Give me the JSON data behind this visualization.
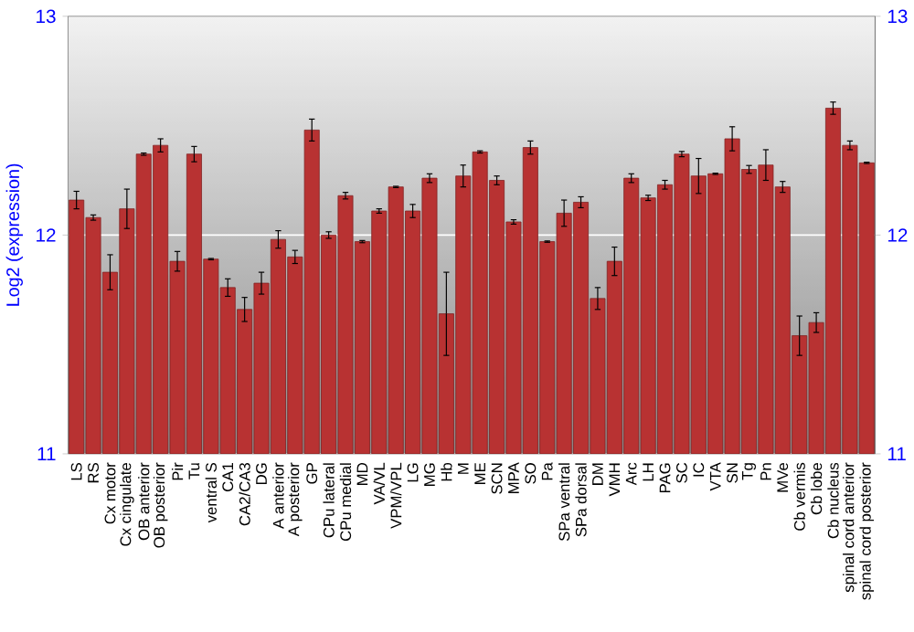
{
  "chart_data": {
    "type": "bar",
    "ylabel": "Log2 (expression)",
    "categories": [
      "LS",
      "RS",
      "Cx motor",
      "Cx cingulate",
      "OB anterior",
      "OB posterior",
      "Pir",
      "Tu",
      "ventral S",
      "CA1",
      "CA2/CA3",
      "DG",
      "A anterior",
      "A posterior",
      "GP",
      "CPu lateral",
      "CPu medial",
      "MD",
      "VA/VL",
      "VPM/VPL",
      "LG",
      "MG",
      "Hb",
      "M",
      "ME",
      "SCN",
      "MPA",
      "SO",
      "Pa",
      "SPa ventral",
      "SPa dorsal",
      "DM",
      "VMH",
      "Arc",
      "LH",
      "PAG",
      "SC",
      "IC",
      "VTA",
      "SN",
      "Tg",
      "Pn",
      "MVe",
      "Cb vermis",
      "Cb lobe",
      "Cb nucleus",
      "spinal cord anterior",
      "spinal cord posterior"
    ],
    "values": [
      12.16,
      12.08,
      11.83,
      12.12,
      12.37,
      12.41,
      11.88,
      12.37,
      11.89,
      11.76,
      11.66,
      11.78,
      11.98,
      11.9,
      12.48,
      12.0,
      12.18,
      11.97,
      12.11,
      12.22,
      12.11,
      12.26,
      11.64,
      12.27,
      12.38,
      12.25,
      12.06,
      12.4,
      11.97,
      12.1,
      12.15,
      11.71,
      11.88,
      12.26,
      12.17,
      12.23,
      12.37,
      12.27,
      12.28,
      12.44,
      12.3,
      12.32,
      12.22,
      11.54,
      11.6,
      12.58,
      12.41,
      12.33
    ],
    "errors": [
      0.04,
      0.012,
      0.08,
      0.09,
      0.005,
      0.03,
      0.045,
      0.035,
      0.003,
      0.04,
      0.055,
      0.05,
      0.04,
      0.03,
      0.05,
      0.015,
      0.015,
      0.005,
      0.01,
      0.003,
      0.03,
      0.02,
      0.19,
      0.05,
      0.005,
      0.02,
      0.01,
      0.03,
      0.003,
      0.06,
      0.025,
      0.05,
      0.065,
      0.02,
      0.012,
      0.02,
      0.012,
      0.08,
      0.003,
      0.055,
      0.018,
      0.07,
      0.025,
      0.09,
      0.045,
      0.028,
      0.02,
      0.003
    ],
    "color": "#b83232",
    "ylim": [
      11,
      13
    ],
    "yticks": [
      11,
      12,
      13
    ],
    "y2lim": [
      11,
      13
    ],
    "y2ticks": [
      11,
      12,
      13
    ],
    "grid": "y"
  }
}
